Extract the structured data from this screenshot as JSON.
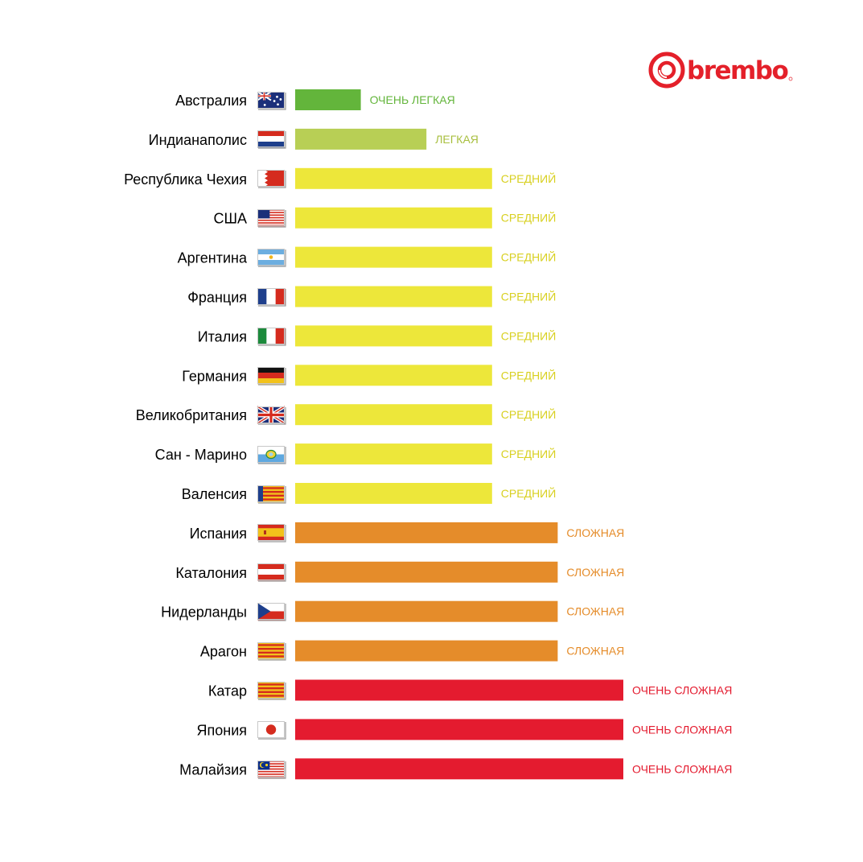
{
  "brand": {
    "name": "brembo",
    "color": "#e4202a"
  },
  "chart_data": {
    "type": "bar",
    "orientation": "horizontal",
    "title": "",
    "xlabel": "",
    "ylabel": "",
    "grid": false,
    "legend": "none",
    "xlim": [
      0,
      5
    ],
    "categories": [
      "Австралия",
      "Индианаполис",
      "Республика Чехия",
      "США",
      "Аргентина",
      "Франция",
      "Италия",
      "Германия",
      "Великобритания",
      "Сан - Марино",
      "Валенсия",
      "Испания",
      "Каталония",
      "Нидерланды",
      "Арагон",
      "Катар",
      "Япония",
      "Малайзия"
    ],
    "values": [
      1,
      2,
      3,
      3,
      3,
      3,
      3,
      3,
      3,
      3,
      3,
      4,
      4,
      4,
      4,
      5,
      5,
      5
    ],
    "value_labels": [
      "ОЧЕНЬ ЛЕГКАЯ",
      "ЛЕГКАЯ",
      "СРЕДНИЙ",
      "СРЕДНИЙ",
      "СРЕДНИЙ",
      "СРЕДНИЙ",
      "СРЕДНИЙ",
      "СРЕДНИЙ",
      "СРЕДНИЙ",
      "СРЕДНИЙ",
      "СРЕДНИЙ",
      "СЛОЖНАЯ",
      "СЛОЖНАЯ",
      "СЛОЖНАЯ",
      "СЛОЖНАЯ",
      "ОЧЕНЬ СЛОЖНАЯ",
      "ОЧЕНЬ СЛОЖНАЯ",
      "ОЧЕНЬ СЛОЖНАЯ"
    ],
    "flags": [
      "australia-flag-icon",
      "netherlands-flag-icon",
      "bahrain-flag-icon",
      "usa-flag-icon",
      "argentina-flag-icon",
      "france-flag-icon",
      "italy-flag-icon",
      "germany-flag-icon",
      "uk-flag-icon",
      "san-marino-flag-icon",
      "valencia-flag-icon",
      "spain-flag-icon",
      "austria-flag-icon",
      "czech-flag-icon",
      "aragon-flag-icon",
      "catalonia-flag-icon",
      "japan-flag-icon",
      "malaysia-flag-icon"
    ],
    "level_colors": {
      "1": "#63b53b",
      "2": "#b8cf55",
      "3": "#ede73a",
      "4": "#e58c2a",
      "5": "#e41b2f"
    },
    "label_colors": {
      "1": "#63b53b",
      "2": "#a8bf3f",
      "3": "#d8d020",
      "4": "#e58c2a",
      "5": "#e41b2f"
    }
  }
}
